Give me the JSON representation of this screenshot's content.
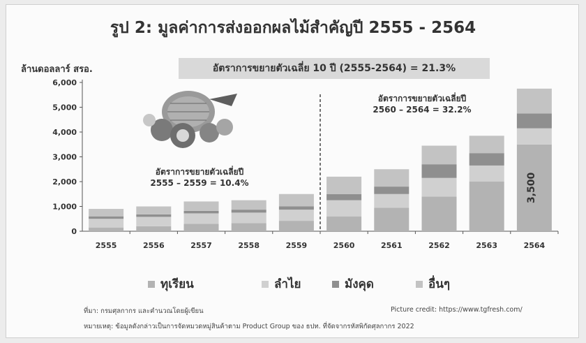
{
  "title": "รูป 2: มูลค่าการส่งออกผลไม้สำคัญปี 2555 - 2564",
  "ylabel": "ล้านดอลลาร์ สรอ.",
  "cagr_overall": "อัตราการขยายตัวเฉลี่ย 10 ปี (2555-2564) = 21.3%",
  "cagr_left_line1": "อัตราการขยายตัวเฉลี่ยปี",
  "cagr_left_line2": "2555 – 2559 = 10.4%",
  "cagr_right_line1": "อัตราการขยายตัวเฉลี่ยปี",
  "cagr_right_line2": "2560 – 2564 = 32.2%",
  "source_left": "ที่มา: กรมศุลกากร และคำนวณโดยผู้เขียน",
  "source_right": "Picture credit: https://www.tgfresh.com/",
  "note": "หมายเหตุ: ข้อมูลดังกล่าวเป็นการจัดหมวดหมู่สินค้าตาม Product Group ของ ธปท. ที่จัดจากรหัสพิกัดศุลกากร 2022",
  "legend": [
    "ทุเรียน",
    "ลำไย",
    "มังคุด",
    "อื่นๆ"
  ],
  "colors": {
    "durian": "#b3b3b3",
    "longan": "#d0d0d0",
    "mangosteen": "#8f8f8f",
    "other": "#c3c3c3",
    "axis": "#555555"
  },
  "chart_data": {
    "type": "bar",
    "stacked": true,
    "categories": [
      "2555",
      "2556",
      "2557",
      "2558",
      "2559",
      "2560",
      "2561",
      "2562",
      "2563",
      "2564"
    ],
    "series": [
      {
        "name": "ทุเรียน",
        "values": [
          150,
          200,
          300,
          330,
          420,
          600,
          950,
          1400,
          2000,
          3500
        ]
      },
      {
        "name": "ลำไย",
        "values": [
          350,
          380,
          420,
          420,
          450,
          650,
          550,
          750,
          650,
          650
        ]
      },
      {
        "name": "มังคุด",
        "values": [
          100,
          100,
          100,
          120,
          130,
          250,
          300,
          550,
          500,
          600
        ]
      },
      {
        "name": "อื่นๆ",
        "values": [
          300,
          320,
          380,
          380,
          500,
          700,
          700,
          750,
          700,
          1000
        ]
      }
    ],
    "data_labels": [
      {
        "category": "2564",
        "series": "ทุเรียน",
        "text": "3,500"
      }
    ],
    "ylim": [
      0,
      6000
    ],
    "yticks": [
      0,
      1000,
      2000,
      3000,
      4000,
      5000,
      6000
    ],
    "ytick_labels": [
      "0",
      "1,000",
      "2,000",
      "3,000",
      "4,000",
      "5,000",
      "6,000"
    ],
    "divider_after": "2559",
    "grid": false
  }
}
